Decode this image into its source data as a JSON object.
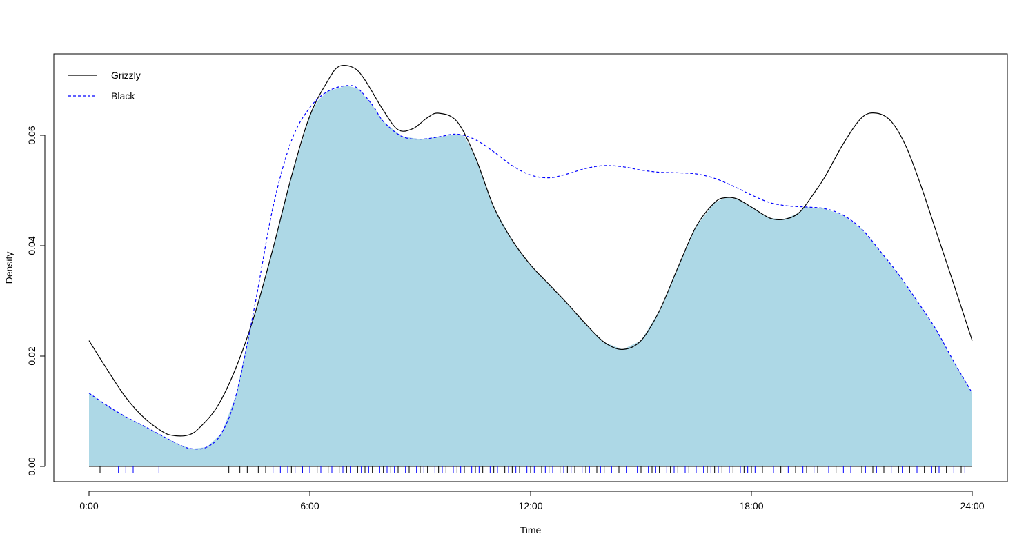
{
  "chart_data": {
    "type": "area",
    "title": "",
    "xlabel": "Time",
    "ylabel": "Density",
    "xlim": [
      0,
      24
    ],
    "ylim": [
      0,
      0.072
    ],
    "x_ticks": [
      0,
      6,
      12,
      18,
      24
    ],
    "x_tick_labels": [
      "0:00",
      "6:00",
      "12:00",
      "18:00",
      "24:00"
    ],
    "y_ticks": [
      0,
      0.02,
      0.04,
      0.06
    ],
    "y_tick_labels": [
      "0.00",
      "0.02",
      "0.04",
      "0.06"
    ],
    "grid": false,
    "legend_position": "top-left",
    "overlap_fill_color": "#add8e6",
    "series": [
      {
        "name": "Grizzly",
        "color": "#000000",
        "line_style": "solid",
        "x": [
          0,
          0.5,
          1,
          1.5,
          2,
          2.3,
          2.7,
          3,
          3.5,
          4,
          4.5,
          5,
          5.5,
          6,
          6.5,
          6.8,
          7.2,
          7.5,
          8,
          8.4,
          8.8,
          9.2,
          9.5,
          10,
          10.5,
          11,
          11.5,
          12,
          12.5,
          13,
          13.5,
          14,
          14.5,
          15,
          15.5,
          16,
          16.5,
          17,
          17.3,
          17.6,
          18,
          18.5,
          18.9,
          19.3,
          19.7,
          20,
          20.5,
          21,
          21.4,
          21.8,
          22.2,
          22.6,
          23,
          23.5,
          24
        ],
        "y": [
          0.0228,
          0.0175,
          0.0125,
          0.0088,
          0.0063,
          0.0056,
          0.0057,
          0.007,
          0.011,
          0.018,
          0.0275,
          0.0395,
          0.0525,
          0.0635,
          0.07,
          0.0725,
          0.0722,
          0.07,
          0.0645,
          0.061,
          0.0612,
          0.0632,
          0.064,
          0.0625,
          0.056,
          0.047,
          0.041,
          0.0365,
          0.033,
          0.0295,
          0.0258,
          0.0225,
          0.0212,
          0.0228,
          0.0282,
          0.036,
          0.0435,
          0.0478,
          0.0487,
          0.0485,
          0.047,
          0.045,
          0.0448,
          0.046,
          0.0495,
          0.0525,
          0.0585,
          0.0632,
          0.064,
          0.0625,
          0.058,
          0.051,
          0.043,
          0.033,
          0.0228
        ]
      },
      {
        "name": "Black",
        "color": "#0000ff",
        "line_style": "dashed",
        "x": [
          0,
          0.5,
          1,
          1.5,
          2,
          2.5,
          2.8,
          3.2,
          3.6,
          4,
          4.5,
          5,
          5.5,
          6,
          6.5,
          7,
          7.3,
          7.7,
          8,
          8.5,
          9,
          9.5,
          10,
          10.5,
          11,
          11.5,
          12,
          12.5,
          13,
          13.5,
          14,
          14.5,
          15,
          15.5,
          16,
          16.5,
          17,
          17.5,
          18,
          18.5,
          19,
          19.5,
          20,
          20.5,
          21,
          21.5,
          22,
          22.5,
          23,
          23.5,
          24
        ],
        "y": [
          0.0133,
          0.011,
          0.009,
          0.0073,
          0.0055,
          0.0038,
          0.0032,
          0.0035,
          0.006,
          0.013,
          0.029,
          0.047,
          0.059,
          0.065,
          0.068,
          0.069,
          0.0685,
          0.0655,
          0.0625,
          0.0598,
          0.0593,
          0.0597,
          0.0602,
          0.0592,
          0.057,
          0.0545,
          0.0528,
          0.0523,
          0.053,
          0.054,
          0.0545,
          0.0543,
          0.0537,
          0.0533,
          0.0532,
          0.053,
          0.0522,
          0.0508,
          0.0492,
          0.0478,
          0.0472,
          0.047,
          0.0467,
          0.0455,
          0.043,
          0.039,
          0.0348,
          0.03,
          0.025,
          0.019,
          0.0133
        ]
      }
    ],
    "rug": {
      "grizzly_color": "#000000",
      "black_color": "#0000ff",
      "grizzly_times": [
        0.3,
        3.8,
        4.1,
        4.3,
        4.6,
        4.8,
        5.5,
        5.8,
        6.2,
        6.5,
        6.8,
        7.0,
        7.3,
        7.5,
        7.7,
        8.0,
        8.2,
        8.4,
        8.7,
        9.0,
        9.2,
        9.5,
        9.7,
        10.0,
        10.2,
        10.5,
        10.7,
        11.0,
        11.3,
        11.5,
        11.7,
        12.0,
        12.3,
        12.5,
        12.8,
        13.0,
        13.2,
        13.5,
        13.8,
        14.0,
        14.4,
        15.0,
        15.3,
        15.5,
        15.8,
        16.0,
        16.3,
        16.8,
        17.0,
        17.2,
        17.5,
        17.8,
        18.0,
        18.3,
        18.8,
        19.2,
        19.5,
        19.8,
        20.3,
        21.0,
        21.3,
        21.6,
        22.0,
        22.3,
        22.7,
        23.0,
        23.3,
        23.7
      ],
      "black_times": [
        0.8,
        1.0,
        1.2,
        1.9,
        5.0,
        5.2,
        5.4,
        5.6,
        5.8,
        6.0,
        6.3,
        6.6,
        6.9,
        7.1,
        7.4,
        7.6,
        7.9,
        8.1,
        8.3,
        8.6,
        8.9,
        9.1,
        9.4,
        9.6,
        9.9,
        10.1,
        10.4,
        10.6,
        10.9,
        11.1,
        11.4,
        11.6,
        11.9,
        12.1,
        12.4,
        12.6,
        12.9,
        13.1,
        13.4,
        13.6,
        13.9,
        14.2,
        14.6,
        14.9,
        15.2,
        15.4,
        15.7,
        15.9,
        16.2,
        16.5,
        16.7,
        16.9,
        17.1,
        17.4,
        17.7,
        17.9,
        18.1,
        18.6,
        19.0,
        19.4,
        19.7,
        20.1,
        20.5,
        20.7,
        21.1,
        21.4,
        21.8,
        22.1,
        22.5,
        22.9,
        23.1,
        23.5,
        23.8
      ]
    }
  }
}
